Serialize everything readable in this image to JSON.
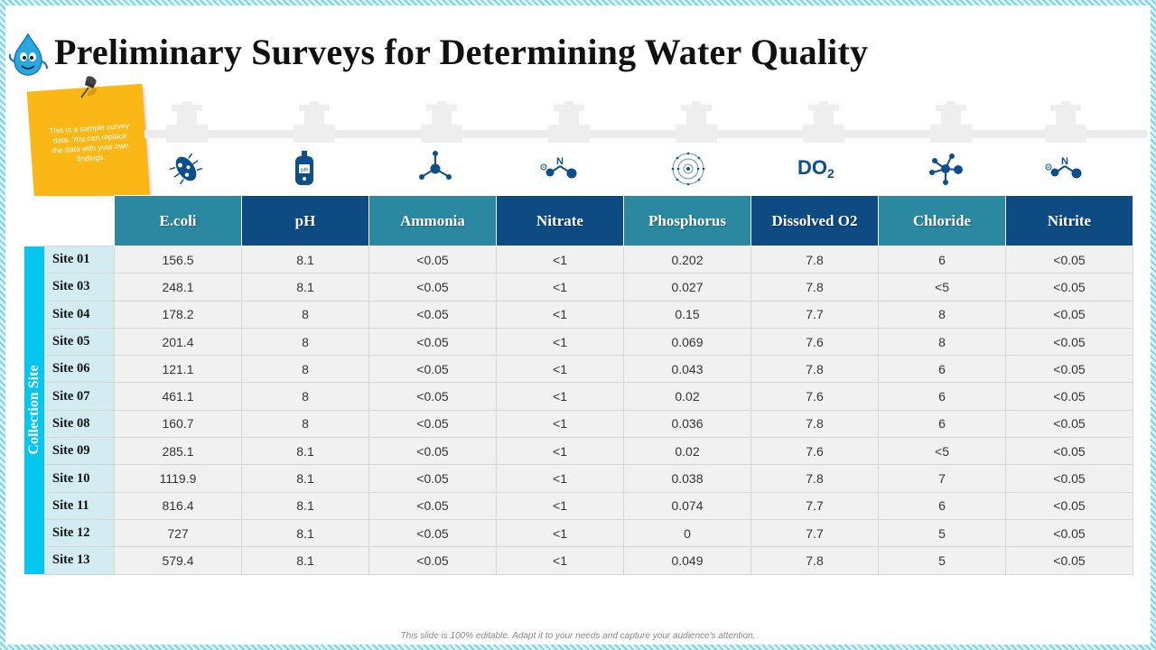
{
  "title": "Preliminary Surveys for Determining Water Quality",
  "note": "This is a sample survey data. You can replace the data with your own findings.",
  "do2_icon": {
    "main": "DO",
    "sub": "2"
  },
  "icons": [
    "bacteria-icon",
    "ph-meter-icon",
    "molecule-icon",
    "nitrate-molecule-icon",
    "atom-icon",
    "do2-icon",
    "chloride-molecule-icon",
    "nitrite-molecule-icon"
  ],
  "colors": {
    "teal": "#2a88a0",
    "navy": "#0d4b82",
    "cyan": "#05c6ee",
    "icon": "#0e4e8a"
  },
  "table": {
    "row_group_label": "Collection Site",
    "headers": [
      "E.coli",
      "pH",
      "Ammonia",
      "Nitrate",
      "Phosphorus",
      "Dissolved O2",
      "Chloride",
      "Nitrite"
    ],
    "rows": [
      {
        "site": "Site 01",
        "values": [
          "156.5",
          "8.1",
          "<0.05",
          "<1",
          "0.202",
          "7.8",
          "6",
          "<0.05"
        ]
      },
      {
        "site": "Site 03",
        "values": [
          "248.1",
          "8.1",
          "<0.05",
          "<1",
          "0.027",
          "7.8",
          "<5",
          "<0.05"
        ]
      },
      {
        "site": "Site 04",
        "values": [
          "178.2",
          "8",
          "<0.05",
          "<1",
          "0.15",
          "7.7",
          "8",
          "<0.05"
        ]
      },
      {
        "site": "Site 05",
        "values": [
          "201.4",
          "8",
          "<0.05",
          "<1",
          "0.069",
          "7.6",
          "8",
          "<0.05"
        ]
      },
      {
        "site": "Site 06",
        "values": [
          "121.1",
          "8",
          "<0.05",
          "<1",
          "0.043",
          "7.8",
          "6",
          "<0.05"
        ]
      },
      {
        "site": "Site 07",
        "values": [
          "461.1",
          "8",
          "<0.05",
          "<1",
          "0.02",
          "7.6",
          "6",
          "<0.05"
        ]
      },
      {
        "site": "Site 08",
        "values": [
          "160.7",
          "8",
          "<0.05",
          "<1",
          "0.036",
          "7.8",
          "6",
          "<0.05"
        ]
      },
      {
        "site": "Site 09",
        "values": [
          "285.1",
          "8.1",
          "<0.05",
          "<1",
          "0.02",
          "7.6",
          "<5",
          "<0.05"
        ]
      },
      {
        "site": "Site 10",
        "values": [
          "1119.9",
          "8.1",
          "<0.05",
          "<1",
          "0.038",
          "7.8",
          "7",
          "<0.05"
        ]
      },
      {
        "site": "Site 11",
        "values": [
          "816.4",
          "8.1",
          "<0.05",
          "<1",
          "0.074",
          "7.7",
          "6",
          "<0.05"
        ]
      },
      {
        "site": "Site 12",
        "values": [
          "727",
          "8.1",
          "<0.05",
          "<1",
          "0",
          "7.7",
          "5",
          "<0.05"
        ]
      },
      {
        "site": "Site 13",
        "values": [
          "579.4",
          "8.1",
          "<0.05",
          "<1",
          "0.049",
          "7.8",
          "5",
          "<0.05"
        ]
      }
    ]
  },
  "footer": "This slide is 100% editable. Adapt it to your needs and capture your audience's attention."
}
